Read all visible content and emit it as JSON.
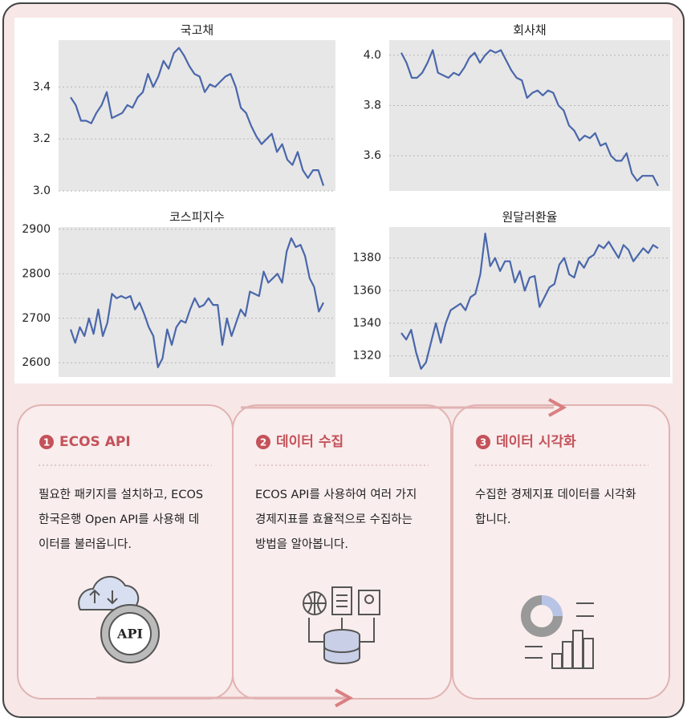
{
  "chart_data": [
    {
      "type": "line",
      "title": "국고채",
      "color": "#4a67ab",
      "grid": true,
      "ylim": [
        3.0,
        3.58
      ],
      "yticks": [
        {
          "value": 3,
          "label": "3.0"
        },
        3.2,
        3.4
      ],
      "values": [
        3.36,
        3.33,
        3.27,
        3.27,
        3.26,
        3.3,
        3.33,
        3.38,
        3.28,
        3.29,
        3.3,
        3.33,
        3.32,
        3.36,
        3.38,
        3.45,
        3.4,
        3.44,
        3.5,
        3.47,
        3.53,
        3.55,
        3.52,
        3.48,
        3.45,
        3.44,
        3.38,
        3.41,
        3.4,
        3.42,
        3.44,
        3.45,
        3.4,
        3.32,
        3.3,
        3.25,
        3.21,
        3.18,
        3.2,
        3.22,
        3.15,
        3.18,
        3.12,
        3.1,
        3.15,
        3.08,
        3.05,
        3.08,
        3.08,
        3.02
      ]
    },
    {
      "type": "line",
      "title": "회사채",
      "color": "#4a67ab",
      "grid": true,
      "ylim": [
        3.46,
        4.06
      ],
      "yticks": [
        3.6,
        3.8,
        {
          "value": 4,
          "label": "4.0"
        }
      ],
      "values": [
        4.01,
        3.97,
        3.91,
        3.91,
        3.93,
        3.97,
        4.02,
        3.93,
        3.92,
        3.91,
        3.93,
        3.92,
        3.95,
        3.99,
        4.01,
        3.97,
        4.0,
        4.02,
        4.01,
        4.02,
        3.98,
        3.94,
        3.91,
        3.9,
        3.83,
        3.85,
        3.86,
        3.84,
        3.86,
        3.85,
        3.8,
        3.78,
        3.72,
        3.7,
        3.66,
        3.68,
        3.67,
        3.69,
        3.64,
        3.65,
        3.6,
        3.58,
        3.58,
        3.61,
        3.53,
        3.5,
        3.52,
        3.52,
        3.52,
        3.48
      ]
    },
    {
      "type": "line",
      "title": "코스피지수",
      "color": "#4a67ab",
      "grid": true,
      "ylim": [
        2568,
        2905
      ],
      "yticks": [
        2600,
        2700,
        2800,
        2900
      ],
      "values": [
        2675,
        2645,
        2680,
        2660,
        2700,
        2665,
        2720,
        2660,
        2690,
        2755,
        2745,
        2750,
        2745,
        2750,
        2720,
        2735,
        2710,
        2680,
        2660,
        2590,
        2610,
        2675,
        2640,
        2680,
        2695,
        2690,
        2720,
        2745,
        2725,
        2730,
        2745,
        2730,
        2730,
        2640,
        2700,
        2660,
        2690,
        2720,
        2705,
        2760,
        2755,
        2750,
        2805,
        2780,
        2790,
        2800,
        2780,
        2850,
        2880,
        2860,
        2865,
        2840,
        2790,
        2770,
        2715,
        2735
      ]
    },
    {
      "type": "line",
      "title": "원달러환율",
      "color": "#4a67ab",
      "grid": true,
      "ylim": [
        1307,
        1399
      ],
      "yticks": [
        1320,
        1340,
        1360,
        1380
      ],
      "values": [
        1334,
        1330,
        1336,
        1322,
        1312,
        1316,
        1328,
        1340,
        1328,
        1340,
        1348,
        1350,
        1352,
        1348,
        1356,
        1358,
        1370,
        1395,
        1375,
        1380,
        1372,
        1378,
        1378,
        1365,
        1372,
        1360,
        1368,
        1369,
        1350,
        1356,
        1362,
        1364,
        1376,
        1380,
        1370,
        1368,
        1378,
        1374,
        1380,
        1382,
        1388,
        1386,
        1390,
        1385,
        1380,
        1388,
        1385,
        1378,
        1382,
        1386,
        1383,
        1388,
        1386
      ]
    }
  ],
  "steps": [
    {
      "number": "1",
      "title": "ECOS API",
      "lines": [
        "필요한 패키지를 설치하고, ECOS",
        "한국은행 Open API를 사용해 데",
        "이터를 불러옵니다."
      ],
      "icon": "API"
    },
    {
      "number": "2",
      "title": "데이터 수집",
      "lines": [
        "ECOS API를 사용하여 여러 가지",
        "경제지표를 효율적으로 수집하는",
        "방법을 알아봅니다."
      ]
    },
    {
      "number": "3",
      "title": "데이터 시각화",
      "lines": [
        "수집한 경제지표 데이터를 시각화",
        "합니다."
      ]
    }
  ]
}
